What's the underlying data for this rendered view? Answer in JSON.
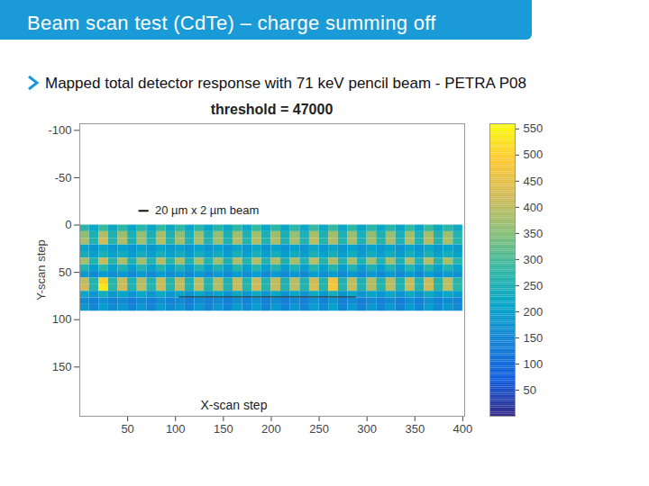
{
  "title": "Beam scan test (CdTe) – charge summing off",
  "subtitle": "Mapped total detector response with 71 keV pencil beam - PETRA P08",
  "chart_data": {
    "type": "heatmap",
    "title": "threshold = 47000",
    "x_label": "X-scan step",
    "y_label": "Y-scan step",
    "xlim": [
      0,
      402
    ],
    "ylim": [
      -107,
      202
    ],
    "xticks": [
      50,
      100,
      150,
      200,
      250,
      300,
      350,
      400
    ],
    "yticks": [
      -100,
      -50,
      0,
      50,
      100,
      150
    ],
    "x_bins": [
      0,
      10,
      20,
      30,
      40,
      50,
      60,
      70,
      80,
      90,
      100,
      110,
      120,
      130,
      140,
      150,
      160,
      170,
      180,
      190,
      200,
      210,
      220,
      230,
      240,
      250,
      260,
      270,
      280,
      290,
      300,
      310,
      320,
      330,
      340,
      350,
      360,
      370,
      380,
      390,
      400
    ],
    "y_bins": [
      0,
      7,
      14,
      21,
      28,
      35,
      42,
      49,
      56,
      63,
      70,
      77,
      84,
      91
    ],
    "cells": [
      [
        270,
        220,
        290,
        225,
        280,
        215,
        275,
        220,
        285,
        225,
        280,
        220,
        275,
        215,
        270,
        220,
        280,
        225,
        285,
        220,
        275,
        215,
        280,
        220,
        290,
        225,
        285,
        220,
        280,
        215,
        275,
        220,
        270,
        215,
        280,
        220,
        285,
        225,
        275,
        230
      ],
      [
        360,
        250,
        390,
        255,
        370,
        245,
        365,
        250,
        380,
        255,
        360,
        245,
        370,
        250,
        365,
        245,
        375,
        255,
        380,
        250,
        370,
        245,
        365,
        250,
        385,
        255,
        375,
        250,
        370,
        245,
        360,
        250,
        365,
        245,
        375,
        250,
        380,
        255,
        370,
        260
      ],
      [
        380,
        260,
        420,
        265,
        390,
        255,
        375,
        260,
        395,
        265,
        380,
        255,
        385,
        260,
        375,
        255,
        390,
        265,
        395,
        260,
        385,
        255,
        380,
        260,
        400,
        265,
        390,
        260,
        385,
        255,
        375,
        260,
        380,
        255,
        390,
        260,
        395,
        265,
        385,
        270
      ],
      [
        210,
        180,
        220,
        185,
        205,
        175,
        210,
        180,
        215,
        185,
        205,
        175,
        210,
        180,
        205,
        175,
        215,
        185,
        220,
        180,
        210,
        175,
        205,
        180,
        220,
        185,
        215,
        180,
        210,
        175,
        205,
        180,
        210,
        175,
        215,
        180,
        220,
        185,
        210,
        190
      ],
      [
        240,
        200,
        250,
        205,
        235,
        195,
        240,
        200,
        245,
        205,
        235,
        195,
        240,
        200,
        235,
        195,
        245,
        205,
        250,
        200,
        240,
        195,
        235,
        200,
        250,
        205,
        245,
        200,
        240,
        195,
        235,
        200,
        240,
        195,
        245,
        200,
        250,
        205,
        240,
        210
      ],
      [
        380,
        260,
        410,
        265,
        385,
        255,
        375,
        260,
        395,
        265,
        380,
        255,
        385,
        260,
        375,
        255,
        390,
        265,
        395,
        260,
        385,
        255,
        380,
        260,
        400,
        265,
        390,
        260,
        385,
        255,
        375,
        260,
        380,
        255,
        390,
        260,
        395,
        265,
        385,
        270
      ],
      [
        260,
        200,
        275,
        205,
        255,
        195,
        260,
        200,
        265,
        205,
        255,
        195,
        260,
        200,
        255,
        195,
        265,
        205,
        270,
        200,
        260,
        195,
        255,
        200,
        270,
        205,
        265,
        200,
        260,
        195,
        255,
        200,
        260,
        195,
        265,
        200,
        270,
        205,
        260,
        210
      ],
      [
        190,
        160,
        195,
        165,
        185,
        155,
        190,
        160,
        195,
        165,
        185,
        155,
        190,
        160,
        185,
        155,
        195,
        165,
        200,
        160,
        190,
        155,
        185,
        160,
        200,
        165,
        195,
        160,
        190,
        155,
        185,
        160,
        190,
        155,
        195,
        160,
        200,
        165,
        190,
        170
      ],
      [
        400,
        260,
        500,
        270,
        410,
        255,
        390,
        260,
        410,
        265,
        395,
        255,
        400,
        260,
        390,
        255,
        405,
        265,
        410,
        260,
        400,
        255,
        395,
        260,
        420,
        265,
        470,
        260,
        400,
        255,
        390,
        260,
        395,
        255,
        405,
        260,
        410,
        265,
        400,
        270
      ],
      [
        420,
        265,
        530,
        275,
        420,
        260,
        400,
        265,
        415,
        270,
        400,
        260,
        410,
        265,
        395,
        260,
        410,
        270,
        420,
        265,
        405,
        260,
        400,
        265,
        430,
        270,
        480,
        265,
        410,
        260,
        395,
        265,
        400,
        260,
        410,
        265,
        420,
        270,
        405,
        275
      ],
      [
        220,
        180,
        240,
        185,
        215,
        175,
        220,
        180,
        225,
        185,
        215,
        175,
        220,
        180,
        215,
        175,
        225,
        185,
        230,
        180,
        220,
        175,
        215,
        180,
        230,
        185,
        240,
        180,
        220,
        175,
        215,
        180,
        220,
        175,
        225,
        180,
        230,
        185,
        220,
        190
      ],
      [
        160,
        140,
        170,
        145,
        155,
        135,
        160,
        140,
        165,
        145,
        155,
        135,
        160,
        140,
        155,
        135,
        165,
        145,
        170,
        140,
        160,
        135,
        155,
        140,
        170,
        145,
        175,
        140,
        160,
        135,
        155,
        140,
        160,
        135,
        165,
        140,
        170,
        145,
        160,
        150
      ],
      [
        190,
        150,
        200,
        155,
        185,
        145,
        190,
        150,
        195,
        155,
        185,
        145,
        190,
        150,
        185,
        145,
        195,
        155,
        200,
        150,
        190,
        145,
        185,
        150,
        200,
        155,
        210,
        150,
        190,
        145,
        185,
        150,
        190,
        145,
        195,
        150,
        200,
        155,
        190,
        160
      ]
    ],
    "colorbar_lim": [
      0,
      560
    ],
    "colorbar_ticks": [
      50,
      100,
      150,
      200,
      250,
      300,
      350,
      400,
      450,
      500,
      550
    ],
    "annotation": {
      "text": "20 µm x 2 µm beam",
      "x": [
        62,
        71
      ],
      "y": -15
    },
    "line": {
      "x": [
        104,
        288
      ],
      "y": 76
    }
  }
}
